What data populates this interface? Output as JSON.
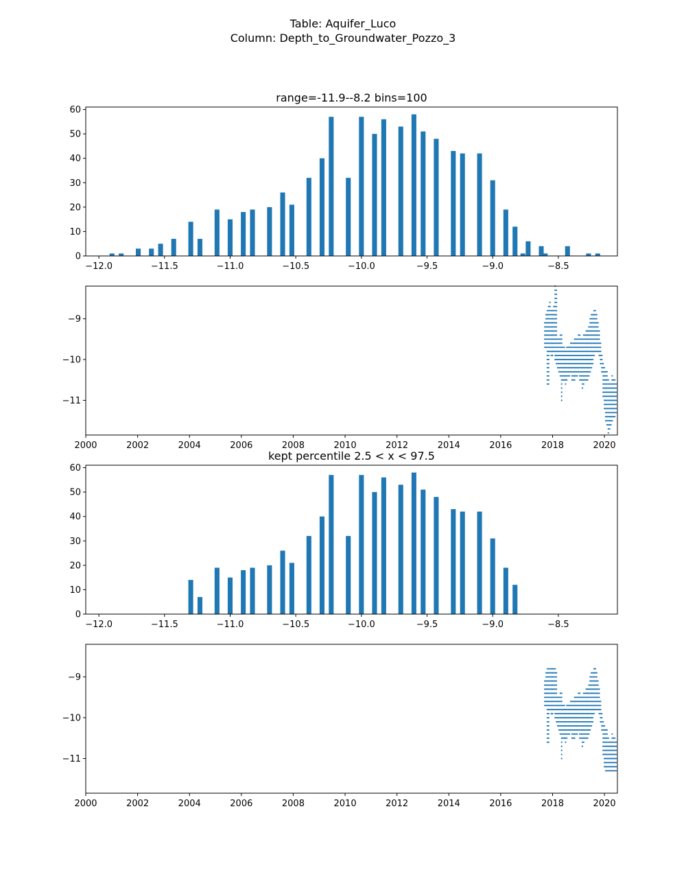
{
  "figure": {
    "title_line1": "Table: Aquifer_Luco",
    "title_line2": "Column: Depth_to_Groundwater_Pozzo_3",
    "bar_color": "#1f77b4",
    "point_color": "#1f77b4"
  },
  "chart_data": [
    {
      "type": "bar",
      "title": "range=-11.9--8.2 bins=100",
      "xlim": [
        -12.1,
        -8.05
      ],
      "ylim": [
        0,
        61
      ],
      "xticks": [
        -12.0,
        -11.5,
        -11.0,
        -10.5,
        -10.0,
        -9.5,
        -9.0,
        -8.5
      ],
      "xtick_labels": [
        "−12.0",
        "−11.5",
        "−11.0",
        "−10.5",
        "−10.0",
        "−9.5",
        "−9.0",
        "−8.5"
      ],
      "yticks": [
        0,
        10,
        20,
        30,
        40,
        50,
        60
      ],
      "ytick_labels": [
        "0",
        "10",
        "20",
        "30",
        "40",
        "50",
        "60"
      ],
      "bin_width": 0.037,
      "x": [
        -11.9,
        -11.83,
        -11.7,
        -11.6,
        -11.53,
        -11.43,
        -11.3,
        -11.23,
        -11.1,
        -11.0,
        -10.9,
        -10.83,
        -10.7,
        -10.6,
        -10.53,
        -10.4,
        -10.3,
        -10.23,
        -10.1,
        -10.0,
        -9.9,
        -9.83,
        -9.7,
        -9.6,
        -9.53,
        -9.43,
        -9.3,
        -9.23,
        -9.1,
        -9.0,
        -8.9,
        -8.83,
        -8.77,
        -8.73,
        -8.63,
        -8.6,
        -8.43,
        -8.27,
        -8.2
      ],
      "values": [
        1,
        1,
        3,
        3,
        5,
        7,
        14,
        7,
        19,
        15,
        18,
        19,
        20,
        26,
        21,
        32,
        40,
        57,
        32,
        57,
        50,
        56,
        53,
        58,
        51,
        48,
        43,
        42,
        42,
        31,
        19,
        12,
        1,
        6,
        4,
        1,
        4,
        1,
        1
      ]
    },
    {
      "type": "scatter",
      "xlim": [
        2000.0,
        2020.5
      ],
      "ylim": [
        -11.85,
        -8.2
      ],
      "xticks": [
        2000,
        2002,
        2004,
        2006,
        2008,
        2010,
        2012,
        2014,
        2016,
        2018,
        2020
      ],
      "xtick_labels": [
        "2000",
        "2002",
        "2004",
        "2006",
        "2008",
        "2010",
        "2012",
        "2014",
        "2016",
        "2018",
        "2020"
      ],
      "yticks": [
        -9,
        -10,
        -11
      ],
      "ytick_labels": [
        "−9",
        "−10",
        "−11"
      ],
      "x": [
        2017.7,
        2017.75,
        2017.8,
        2017.85,
        2017.9,
        2017.95,
        2018.0,
        2018.05,
        2018.1,
        2018.15,
        2018.2,
        2018.25,
        2018.3,
        2018.35,
        2018.4,
        2018.45,
        2018.5,
        2018.55,
        2018.6,
        2018.65,
        2018.7,
        2018.75,
        2018.8,
        2018.85,
        2018.9,
        2018.95,
        2019.0,
        2019.05,
        2019.1,
        2019.15,
        2019.2,
        2019.25,
        2019.3,
        2019.35,
        2019.4,
        2019.45,
        2019.5,
        2019.55,
        2019.6,
        2019.65,
        2019.7,
        2019.75,
        2019.8,
        2019.85,
        2019.9,
        2019.95,
        2020.0,
        2020.05,
        2020.1,
        2020.15,
        2020.2,
        2020.25,
        2020.3,
        2020.35,
        2020.4,
        2020.45
      ],
      "y_min": [
        -9.7,
        -9.7,
        -10.6,
        -10.6,
        -9.8,
        -9.9,
        -9.9,
        -9.8,
        -10.0,
        -10.1,
        -10.2,
        -10.3,
        -10.4,
        -11.0,
        -10.5,
        -10.5,
        -10.6,
        -10.5,
        -10.4,
        -10.4,
        -10.3,
        -10.5,
        -10.5,
        -10.5,
        -10.4,
        -10.4,
        -10.3,
        -10.5,
        -10.5,
        -10.7,
        -10.6,
        -10.5,
        -10.5,
        -10.5,
        -10.4,
        -10.3,
        -10.2,
        -10.1,
        -9.9,
        -9.8,
        -9.8,
        -9.8,
        -9.9,
        -10.1,
        -10.3,
        -10.9,
        -11.2,
        -11.5,
        -11.6,
        -11.8,
        -11.7,
        -11.6,
        -11.5,
        -11.4,
        -11.4,
        -11.3
      ],
      "y_max": [
        -9.1,
        -8.9,
        -8.8,
        -8.7,
        -8.6,
        -8.8,
        -8.8,
        -8.7,
        -8.2,
        -8.3,
        -9.5,
        -9.5,
        -9.4,
        -9.4,
        -9.7,
        -9.7,
        -9.8,
        -9.7,
        -9.7,
        -9.7,
        -9.6,
        -9.6,
        -9.6,
        -9.5,
        -9.5,
        -9.5,
        -9.4,
        -9.4,
        -9.5,
        -9.5,
        -9.4,
        -9.4,
        -9.3,
        -9.3,
        -9.2,
        -9.0,
        -8.9,
        -8.9,
        -8.8,
        -8.8,
        -8.9,
        -9.1,
        -9.3,
        -9.6,
        -9.9,
        -10.1,
        -10.2,
        -10.3,
        -10.3,
        -10.5,
        -10.6,
        -10.6,
        -10.4,
        -10.5,
        -10.5,
        -10.6
      ]
    },
    {
      "type": "bar",
      "title": "kept percentile 2.5 < x < 97.5",
      "xlim": [
        -12.1,
        -8.05
      ],
      "ylim": [
        0,
        61
      ],
      "xticks": [
        -12.0,
        -11.5,
        -11.0,
        -10.5,
        -10.0,
        -9.5,
        -9.0,
        -8.5
      ],
      "xtick_labels": [
        "−12.0",
        "−11.5",
        "−11.0",
        "−10.5",
        "−10.0",
        "−9.5",
        "−9.0",
        "−8.5"
      ],
      "yticks": [
        0,
        10,
        20,
        30,
        40,
        50,
        60
      ],
      "ytick_labels": [
        "0",
        "10",
        "20",
        "30",
        "40",
        "50",
        "60"
      ],
      "bin_width": 0.037,
      "x": [
        -11.3,
        -11.23,
        -11.1,
        -11.0,
        -10.9,
        -10.83,
        -10.7,
        -10.6,
        -10.53,
        -10.4,
        -10.3,
        -10.23,
        -10.1,
        -10.0,
        -9.9,
        -9.83,
        -9.7,
        -9.6,
        -9.53,
        -9.43,
        -9.3,
        -9.23,
        -9.1,
        -9.0,
        -8.9,
        -8.83
      ],
      "values": [
        14,
        7,
        19,
        15,
        18,
        19,
        20,
        26,
        21,
        32,
        40,
        57,
        32,
        57,
        50,
        56,
        53,
        58,
        51,
        48,
        43,
        42,
        42,
        31,
        19,
        12
      ]
    },
    {
      "type": "scatter",
      "xlim": [
        2000.0,
        2020.5
      ],
      "ylim": [
        -11.85,
        -8.2
      ],
      "xticks": [
        2000,
        2002,
        2004,
        2006,
        2008,
        2010,
        2012,
        2014,
        2016,
        2018,
        2020
      ],
      "xtick_labels": [
        "2000",
        "2002",
        "2004",
        "2006",
        "2008",
        "2010",
        "2012",
        "2014",
        "2016",
        "2018",
        "2020"
      ],
      "yticks": [
        -9,
        -10,
        -11
      ],
      "ytick_labels": [
        "−9",
        "−10",
        "−11"
      ],
      "x": [
        2017.7,
        2017.75,
        2017.8,
        2017.85,
        2017.9,
        2017.95,
        2018.0,
        2018.05,
        2018.1,
        2018.15,
        2018.2,
        2018.25,
        2018.3,
        2018.35,
        2018.4,
        2018.45,
        2018.5,
        2018.55,
        2018.6,
        2018.65,
        2018.7,
        2018.75,
        2018.8,
        2018.85,
        2018.9,
        2018.95,
        2019.0,
        2019.05,
        2019.1,
        2019.15,
        2019.2,
        2019.25,
        2019.3,
        2019.35,
        2019.4,
        2019.45,
        2019.5,
        2019.55,
        2019.6,
        2019.65,
        2019.7,
        2019.75,
        2019.8,
        2019.85,
        2019.9,
        2019.95,
        2020.0,
        2020.05,
        2020.1,
        2020.15,
        2020.2,
        2020.25,
        2020.3,
        2020.35,
        2020.4,
        2020.45
      ],
      "y_min": [
        -9.7,
        -9.7,
        -10.6,
        -10.6,
        -9.8,
        -9.9,
        -9.9,
        -9.8,
        -10.0,
        -10.1,
        -10.2,
        -10.3,
        -10.4,
        -11.0,
        -10.5,
        -10.5,
        -10.6,
        -10.5,
        -10.4,
        -10.4,
        -10.3,
        -10.5,
        -10.5,
        -10.5,
        -10.4,
        -10.4,
        -10.3,
        -10.5,
        -10.5,
        -10.7,
        -10.6,
        -10.5,
        -10.5,
        -10.5,
        -10.4,
        -10.3,
        -10.2,
        -10.1,
        -9.9,
        -9.8,
        -9.8,
        -9.8,
        -9.9,
        -10.1,
        -10.3,
        -10.9,
        -11.2,
        -11.3,
        -11.3,
        -11.3,
        -11.3,
        -11.3,
        -11.3,
        -11.3,
        -11.3,
        -11.3
      ],
      "y_max": [
        -9.1,
        -8.9,
        -8.8,
        -8.8,
        -8.8,
        -8.8,
        -8.8,
        -8.8,
        -8.8,
        -8.9,
        -9.5,
        -9.5,
        -9.4,
        -9.4,
        -9.7,
        -9.7,
        -9.8,
        -9.7,
        -9.7,
        -9.7,
        -9.6,
        -9.6,
        -9.6,
        -9.5,
        -9.5,
        -9.5,
        -9.4,
        -9.4,
        -9.5,
        -9.5,
        -9.4,
        -9.4,
        -9.3,
        -9.3,
        -9.2,
        -9.0,
        -8.9,
        -8.9,
        -8.8,
        -8.8,
        -8.9,
        -9.1,
        -9.3,
        -9.6,
        -9.9,
        -10.1,
        -10.2,
        -10.3,
        -10.3,
        -10.5,
        -10.6,
        -10.6,
        -10.4,
        -10.5,
        -10.5,
        -10.6
      ]
    }
  ]
}
